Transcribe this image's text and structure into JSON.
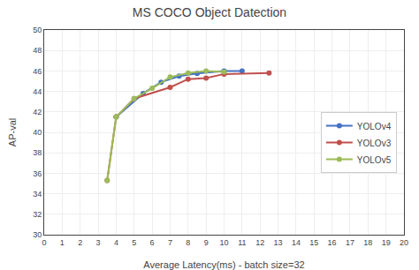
{
  "chart_data": {
    "type": "line",
    "title": "MS COCO Object Datection",
    "xlabel": "Average Latency(ms) - batch size=32",
    "ylabel": "AP-val",
    "xlim": [
      0,
      20
    ],
    "ylim": [
      30,
      50
    ],
    "xticks": [
      0,
      1,
      2,
      3,
      4,
      5,
      6,
      7,
      8,
      9,
      10,
      11,
      12,
      13,
      14,
      15,
      16,
      17,
      18,
      19,
      20
    ],
    "yticks": [
      30,
      32,
      34,
      36,
      38,
      40,
      42,
      44,
      46,
      48,
      50
    ],
    "grid": true,
    "legend": "right",
    "series": [
      {
        "name": "YOLOv4",
        "color": "#4472C4",
        "marker": "circle",
        "x": [
          4.0,
          5.5,
          6.5,
          7.5,
          8.5,
          10.0,
          11.0
        ],
        "values": [
          41.5,
          43.8,
          44.9,
          45.5,
          45.75,
          46.0,
          46.0
        ]
      },
      {
        "name": "YOLOv3",
        "color": "#C0504D",
        "marker": "circle",
        "x": [
          3.5,
          4.0,
          5.0,
          7.0,
          8.0,
          9.0,
          10.0,
          12.5
        ],
        "values": [
          35.3,
          41.5,
          43.3,
          44.4,
          45.2,
          45.3,
          45.7,
          45.8
        ]
      },
      {
        "name": "YOLOv5",
        "color": "#9BBB59",
        "marker": "circle",
        "x": [
          3.5,
          4.0,
          5.0,
          6.0,
          7.0,
          8.0,
          9.0,
          10.0
        ],
        "values": [
          35.3,
          41.5,
          43.3,
          44.3,
          45.4,
          45.8,
          46.0,
          45.9
        ]
      }
    ]
  }
}
